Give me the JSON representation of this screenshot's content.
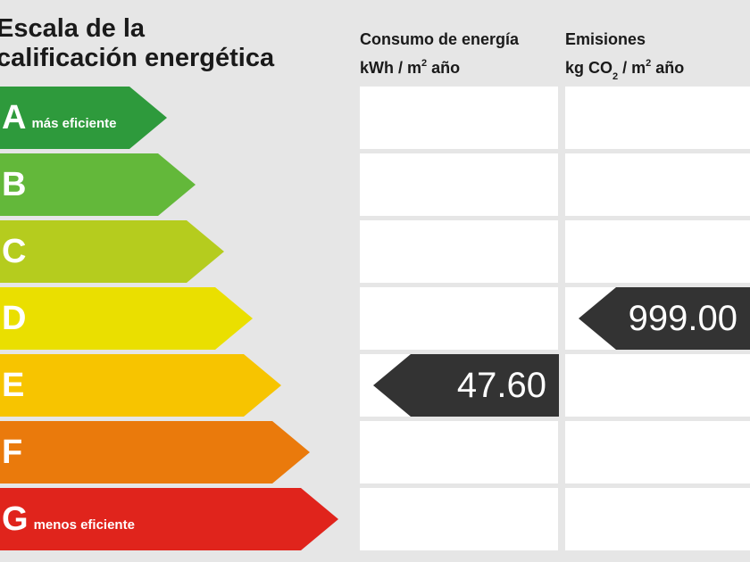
{
  "header": {
    "title_line1": "Escala de la",
    "title_line2": "calificación energética",
    "consumo_line1": "Consumo de energía",
    "consumo_line2_a": "kWh / m",
    "consumo_line2_sup": "2",
    "consumo_line2_b": " año",
    "emisiones_line1": "Emisiones",
    "emisiones_line2_a": "kg CO",
    "emisiones_line2_sub": "2",
    "emisiones_line2_b": " / m",
    "emisiones_line2_sup": "2",
    "emisiones_line2_c": " año"
  },
  "ratings": [
    {
      "letter": "A",
      "note": "más eficiente",
      "color": "#2e9a3c"
    },
    {
      "letter": "B",
      "note": "",
      "color": "#63b83a"
    },
    {
      "letter": "C",
      "note": "",
      "color": "#b5cc1e"
    },
    {
      "letter": "D",
      "note": "",
      "color": "#eadf00"
    },
    {
      "letter": "E",
      "note": "",
      "color": "#f7c400"
    },
    {
      "letter": "F",
      "note": "",
      "color": "#ea7a0c"
    },
    {
      "letter": "G",
      "note": "menos eficiente",
      "color": "#e0241c"
    }
  ],
  "consumo": {
    "value": "47.60",
    "rating": "E"
  },
  "emisiones": {
    "value": "999.00",
    "rating": "D"
  },
  "indicator_color": "#333333"
}
